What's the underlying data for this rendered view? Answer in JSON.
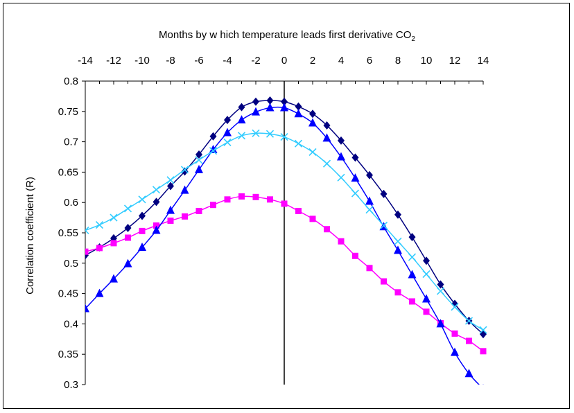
{
  "chart_data": {
    "type": "line",
    "title": "Months by w hich temperature leads first derivative CO",
    "title_subscript": "2",
    "ylabel": "Correlation coefficient (R)",
    "xlabel": "",
    "xlim": [
      -14,
      14
    ],
    "ylim": [
      0.3,
      0.8
    ],
    "x_axis_position": "top",
    "grid": false,
    "legend": "none",
    "x_tick_labels": [
      "-14",
      "-12",
      "-10",
      "-8",
      "-6",
      "-4",
      "-2",
      "0",
      "2",
      "4",
      "6",
      "8",
      "10",
      "12",
      "14"
    ],
    "y_tick_labels": [
      "0.8",
      "0.75",
      "0.7",
      "0.65",
      "0.6",
      "0.55",
      "0.5",
      "0.45",
      "0.4",
      "0.35",
      "0.3"
    ],
    "x": [
      -14,
      -13,
      -12,
      -11,
      -10,
      -9,
      -8,
      -7,
      -6,
      -5,
      -4,
      -3,
      -2,
      -1,
      0,
      1,
      2,
      3,
      4,
      5,
      6,
      7,
      8,
      9,
      10,
      11,
      12,
      13,
      14
    ],
    "series": [
      {
        "marker": "diamond",
        "color": "#000080",
        "values": [
          0.513,
          0.526,
          0.541,
          0.558,
          0.578,
          0.601,
          0.627,
          0.651,
          0.679,
          0.709,
          0.736,
          0.757,
          0.766,
          0.768,
          0.766,
          0.758,
          0.746,
          0.727,
          0.702,
          0.674,
          0.645,
          0.614,
          0.58,
          0.543,
          0.504,
          0.465,
          0.433,
          0.405,
          0.383
        ]
      },
      {
        "marker": "square",
        "color": "#ff00ff",
        "values": [
          0.519,
          0.525,
          0.533,
          0.542,
          0.553,
          0.562,
          0.57,
          0.577,
          0.586,
          0.596,
          0.605,
          0.61,
          0.609,
          0.605,
          0.598,
          0.586,
          0.573,
          0.556,
          0.536,
          0.512,
          0.492,
          0.47,
          0.452,
          0.437,
          0.42,
          0.401,
          0.384,
          0.372,
          0.355
        ]
      },
      {
        "marker": "triangle",
        "color": "#0000ff",
        "values": [
          0.425,
          0.45,
          0.474,
          0.499,
          0.526,
          0.554,
          0.587,
          0.62,
          0.654,
          0.687,
          0.715,
          0.736,
          0.749,
          0.756,
          0.756,
          0.746,
          0.731,
          0.706,
          0.675,
          0.64,
          0.602,
          0.56,
          0.521,
          0.481,
          0.441,
          0.4,
          0.353,
          0.318,
          0.293
        ]
      },
      {
        "marker": "x",
        "color": "#33ccff",
        "values": [
          0.554,
          0.563,
          0.575,
          0.59,
          0.605,
          0.621,
          0.637,
          0.654,
          0.67,
          0.685,
          0.699,
          0.71,
          0.714,
          0.713,
          0.708,
          0.697,
          0.683,
          0.664,
          0.641,
          0.615,
          0.588,
          0.562,
          0.536,
          0.51,
          0.482,
          0.454,
          0.428,
          0.405,
          0.39
        ]
      }
    ]
  }
}
